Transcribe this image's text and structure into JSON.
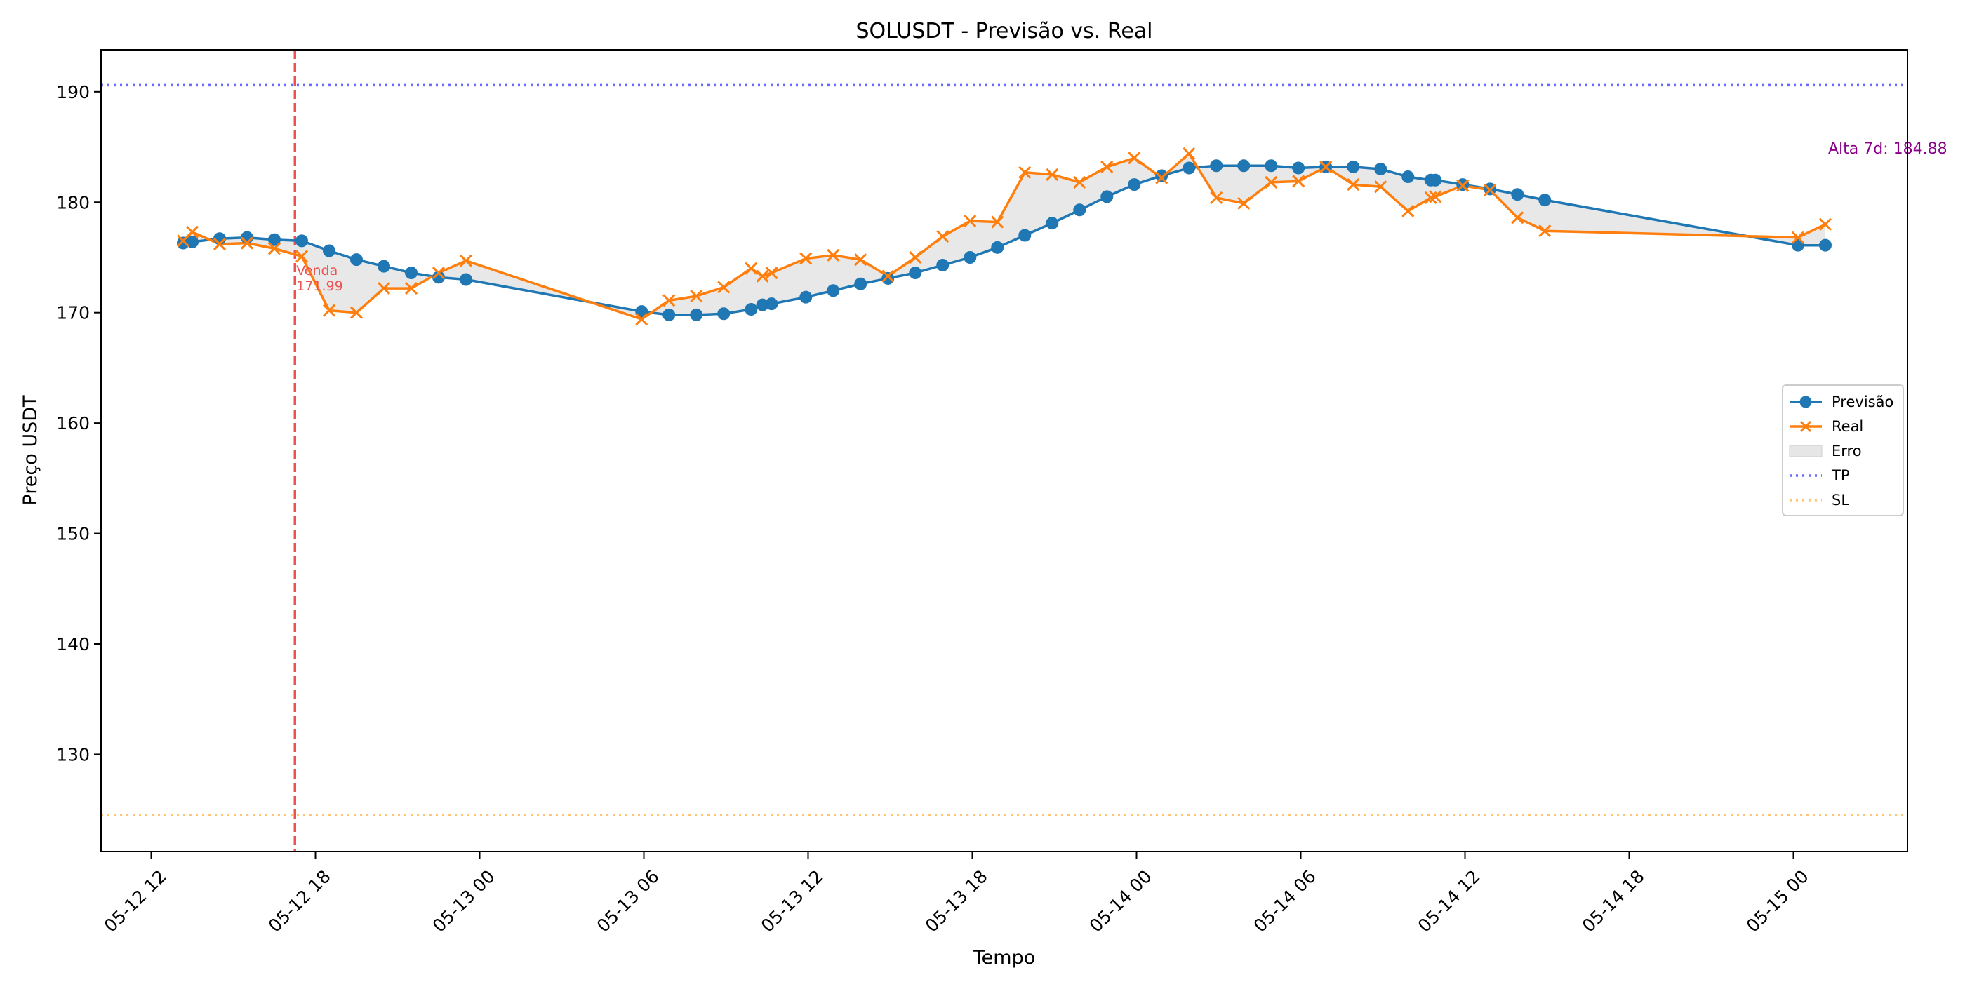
{
  "chart_data": {
    "type": "line",
    "title": "SOLUSDT - Previsão vs. Real",
    "xlabel": "Tempo",
    "ylabel": "Preço USDT",
    "x_tick_labels": [
      "05-12 12",
      "05-12 18",
      "05-13 00",
      "05-13 06",
      "05-13 12",
      "05-13 18",
      "05-14 00",
      "05-14 06",
      "05-14 12",
      "05-14 18",
      "05-15 00"
    ],
    "y_ticks": [
      130,
      140,
      150,
      160,
      170,
      180,
      190
    ],
    "xlim": [
      "2025-05-12 10:10",
      "2025-05-15 04:10"
    ],
    "ylim": [
      121.2,
      193.8
    ],
    "legend": {
      "placement": "center-right",
      "entries": [
        "Previsão",
        "Real",
        "Erro",
        "TP",
        "SL"
      ]
    },
    "colors": {
      "previsao": "#1f77b4",
      "real": "#ff7f0e",
      "erro_fill": "#e6e6e6",
      "tp": "#6a6aff",
      "sl": "#ffc56e",
      "venda": "#ef5050",
      "alta": "#8b008b"
    },
    "tp_value": 190.6,
    "sl_value": 124.5,
    "venda_time": "2025-05-12 17:15",
    "venda_label": "Venda\n171.99",
    "alta_label": "Alta 7d: 184.88",
    "series": [
      {
        "name": "Previsão",
        "marker": "circle",
        "points": [
          [
            "2025-05-12 13:10",
            176.3
          ],
          [
            "2025-05-12 13:30",
            176.4
          ],
          [
            "2025-05-12 14:30",
            176.7
          ],
          [
            "2025-05-12 15:30",
            176.8
          ],
          [
            "2025-05-12 16:30",
            176.6
          ],
          [
            "2025-05-12 17:30",
            176.5
          ],
          [
            "2025-05-12 18:30",
            175.6
          ],
          [
            "2025-05-12 19:30",
            174.8
          ],
          [
            "2025-05-12 20:30",
            174.2
          ],
          [
            "2025-05-12 21:30",
            173.6
          ],
          [
            "2025-05-12 22:30",
            173.2
          ],
          [
            "2025-05-12 23:30",
            173.0
          ],
          [
            "2025-05-13 05:55",
            170.1
          ],
          [
            "2025-05-13 06:55",
            169.8
          ],
          [
            "2025-05-13 07:55",
            169.8
          ],
          [
            "2025-05-13 08:55",
            169.9
          ],
          [
            "2025-05-13 09:55",
            170.3
          ],
          [
            "2025-05-13 10:20",
            170.7
          ],
          [
            "2025-05-13 10:40",
            170.8
          ],
          [
            "2025-05-13 11:55",
            171.4
          ],
          [
            "2025-05-13 12:55",
            172.0
          ],
          [
            "2025-05-13 13:55",
            172.6
          ],
          [
            "2025-05-13 14:55",
            173.1
          ],
          [
            "2025-05-13 15:55",
            173.6
          ],
          [
            "2025-05-13 16:55",
            174.3
          ],
          [
            "2025-05-13 17:55",
            175.0
          ],
          [
            "2025-05-13 18:55",
            175.9
          ],
          [
            "2025-05-13 19:55",
            177.0
          ],
          [
            "2025-05-13 20:55",
            178.1
          ],
          [
            "2025-05-13 21:55",
            179.3
          ],
          [
            "2025-05-13 22:55",
            180.5
          ],
          [
            "2025-05-13 23:55",
            181.6
          ],
          [
            "2025-05-14 00:55",
            182.4
          ],
          [
            "2025-05-14 01:55",
            183.1
          ],
          [
            "2025-05-14 02:55",
            183.3
          ],
          [
            "2025-05-14 03:55",
            183.3
          ],
          [
            "2025-05-14 04:55",
            183.3
          ],
          [
            "2025-05-14 05:55",
            183.1
          ],
          [
            "2025-05-14 06:55",
            183.2
          ],
          [
            "2025-05-14 07:55",
            183.2
          ],
          [
            "2025-05-14 08:55",
            183.0
          ],
          [
            "2025-05-14 09:55",
            182.3
          ],
          [
            "2025-05-14 10:45",
            182.0
          ],
          [
            "2025-05-14 10:55",
            182.0
          ],
          [
            "2025-05-14 11:55",
            181.6
          ],
          [
            "2025-05-14 12:55",
            181.2
          ],
          [
            "2025-05-14 13:55",
            180.7
          ],
          [
            "2025-05-14 14:55",
            180.2
          ],
          [
            "2025-05-15 00:10",
            176.1
          ],
          [
            "2025-05-15 01:10",
            176.1
          ]
        ]
      },
      {
        "name": "Real",
        "marker": "x",
        "points": [
          [
            "2025-05-12 13:10",
            176.5
          ],
          [
            "2025-05-12 13:30",
            177.3
          ],
          [
            "2025-05-12 14:30",
            176.2
          ],
          [
            "2025-05-12 15:30",
            176.3
          ],
          [
            "2025-05-12 16:30",
            175.8
          ],
          [
            "2025-05-12 17:30",
            175.1
          ],
          [
            "2025-05-12 18:30",
            170.2
          ],
          [
            "2025-05-12 19:30",
            170.0
          ],
          [
            "2025-05-12 20:30",
            172.2
          ],
          [
            "2025-05-12 21:30",
            172.2
          ],
          [
            "2025-05-12 22:30",
            173.6
          ],
          [
            "2025-05-12 23:30",
            174.7
          ],
          [
            "2025-05-13 05:55",
            169.4
          ],
          [
            "2025-05-13 06:55",
            171.1
          ],
          [
            "2025-05-13 07:55",
            171.5
          ],
          [
            "2025-05-13 08:55",
            172.3
          ],
          [
            "2025-05-13 09:55",
            174.0
          ],
          [
            "2025-05-13 10:20",
            173.3
          ],
          [
            "2025-05-13 10:40",
            173.6
          ],
          [
            "2025-05-13 11:55",
            174.9
          ],
          [
            "2025-05-13 12:55",
            175.2
          ],
          [
            "2025-05-13 13:55",
            174.8
          ],
          [
            "2025-05-13 14:55",
            173.3
          ],
          [
            "2025-05-13 15:55",
            175.0
          ],
          [
            "2025-05-13 16:55",
            176.9
          ],
          [
            "2025-05-13 17:55",
            178.3
          ],
          [
            "2025-05-13 18:55",
            178.2
          ],
          [
            "2025-05-13 19:55",
            182.7
          ],
          [
            "2025-05-13 20:55",
            182.5
          ],
          [
            "2025-05-13 21:55",
            181.8
          ],
          [
            "2025-05-13 22:55",
            183.2
          ],
          [
            "2025-05-13 23:55",
            184.0
          ],
          [
            "2025-05-14 00:55",
            182.2
          ],
          [
            "2025-05-14 01:55",
            184.4
          ],
          [
            "2025-05-14 02:55",
            180.4
          ],
          [
            "2025-05-14 03:55",
            179.9
          ],
          [
            "2025-05-14 04:55",
            181.8
          ],
          [
            "2025-05-14 05:55",
            181.9
          ],
          [
            "2025-05-14 06:55",
            183.2
          ],
          [
            "2025-05-14 07:55",
            181.6
          ],
          [
            "2025-05-14 08:55",
            181.4
          ],
          [
            "2025-05-14 09:55",
            179.2
          ],
          [
            "2025-05-14 10:45",
            180.4
          ],
          [
            "2025-05-14 10:55",
            180.5
          ],
          [
            "2025-05-14 11:55",
            181.5
          ],
          [
            "2025-05-14 12:55",
            181.1
          ],
          [
            "2025-05-14 13:55",
            178.6
          ],
          [
            "2025-05-14 14:55",
            177.4
          ],
          [
            "2025-05-15 00:10",
            176.8
          ],
          [
            "2025-05-15 01:10",
            178.0
          ]
        ]
      }
    ]
  }
}
